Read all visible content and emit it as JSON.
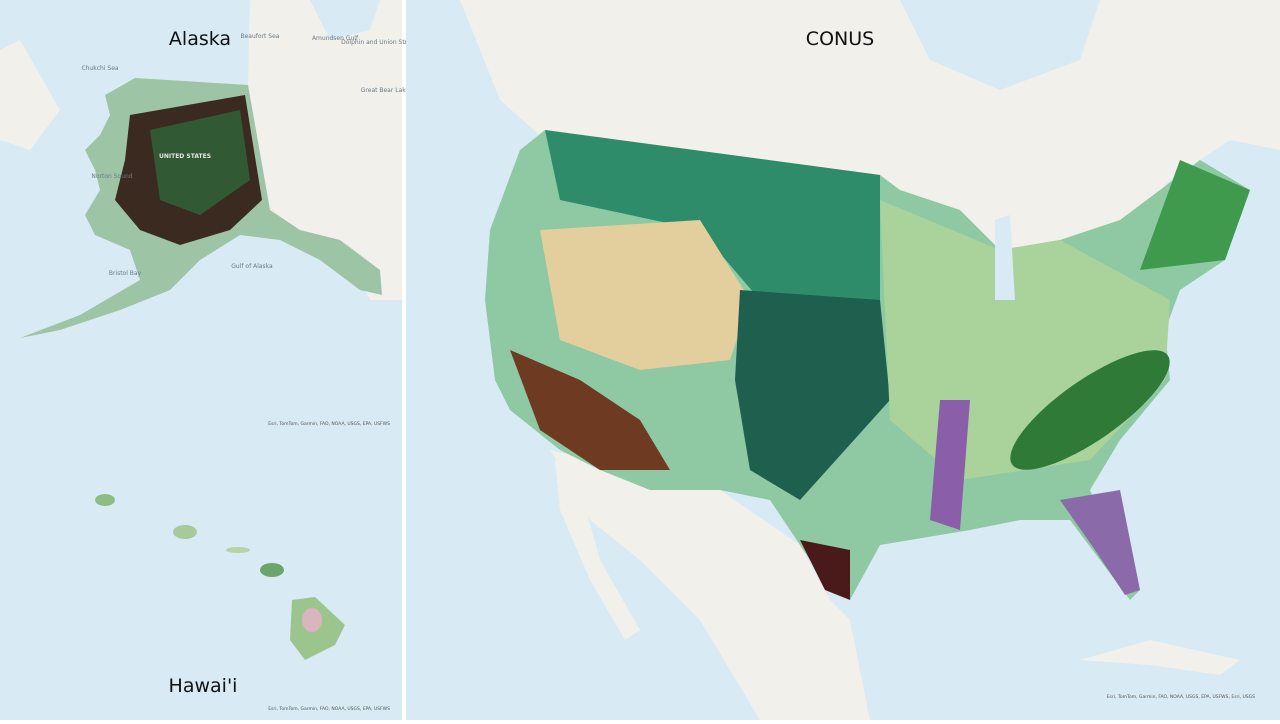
{
  "panels": [
    {
      "title": "Alaska",
      "place_labels": [
        "Beaufort Sea",
        "Chukchi Sea",
        "Norton Sound",
        "Bristol Bay",
        "Gulf of Alaska",
        "Amundsen Gulf",
        "Dolphin and Union Strait",
        "Great Bear Lake",
        "UNITED STATES"
      ],
      "attribution": "Esri, TomTom, Garmin, FAO, NOAA, USGS, EPA, USFWS"
    },
    {
      "title": "Hawai'i",
      "attribution": "Esri, TomTom, Garmin, FAO, NOAA, USGS, EPA, USFWS"
    },
    {
      "title": "CONUS",
      "attribution": "Esri, TomTom, Garmin, FAO, NOAA, USGS, EPA, USFWS, Esri, USGS"
    }
  ]
}
